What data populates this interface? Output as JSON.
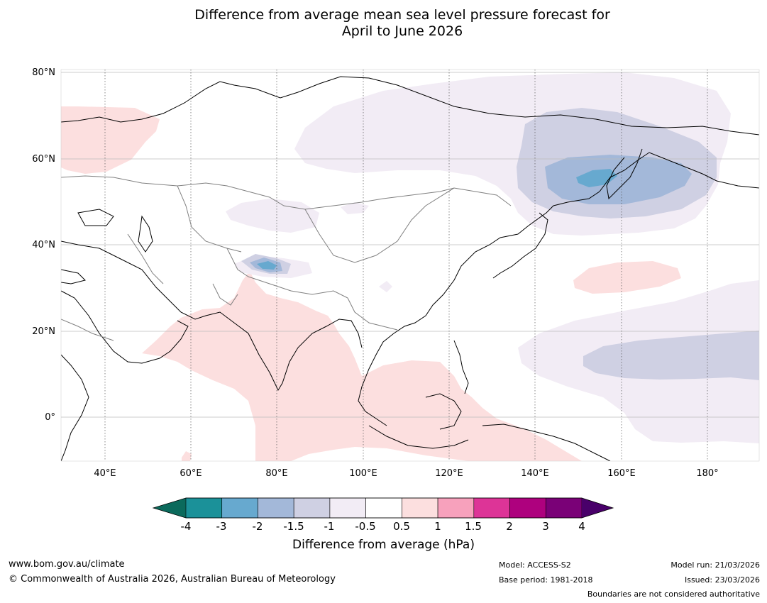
{
  "title": {
    "line1": "Difference from average mean sea level pressure forecast for",
    "line2": "April to June 2026"
  },
  "map": {
    "lat_labels": [
      "80°N",
      "60°N",
      "40°N",
      "20°N",
      "0°"
    ],
    "lon_labels": [
      "40°E",
      "60°E",
      "80°E",
      "100°E",
      "120°E",
      "140°E",
      "160°E",
      "180°"
    ]
  },
  "colorbar": {
    "ticks": [
      "-4",
      "-3",
      "-2",
      "-1.5",
      "-1",
      "-0.5",
      "0.5",
      "1",
      "1.5",
      "2",
      "3",
      "4"
    ],
    "colors": {
      "below_min": "#0b6a5c",
      "bins": [
        "#1b9199",
        "#67a9cf",
        "#a3b8d9",
        "#cfd0e3",
        "#f2ecf5",
        "#ffffff",
        "#fcdfdf",
        "#f7a1bc",
        "#dd3497",
        "#ae017e",
        "#7a0177"
      ],
      "above_max": "#49006a"
    },
    "label": "Difference from average (hPa)"
  },
  "footer": {
    "url": "www.bom.gov.au/climate",
    "copyright": "© Commonwealth of Australia 2026, Australian Bureau of Meteorology",
    "model": "Model: ACCESS-S2",
    "base_period": "Base period: 1981-2018",
    "model_run": "Model run: 21/03/2026",
    "issued": "Issued: 23/03/2026",
    "disclaimer": "Boundaries are not considered authoritative"
  }
}
